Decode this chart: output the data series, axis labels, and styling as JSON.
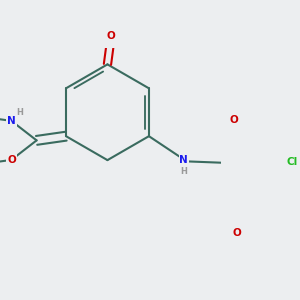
{
  "background_color": "#eceef0",
  "bond_color": "#3a6b5f",
  "bond_width": 1.5,
  "dbo": 0.055,
  "atom_colors": {
    "O": "#cc0000",
    "N": "#1a1aee",
    "Cl": "#22bb22",
    "H": "#888888",
    "C": "#000000"
  },
  "font_size": 7.5
}
